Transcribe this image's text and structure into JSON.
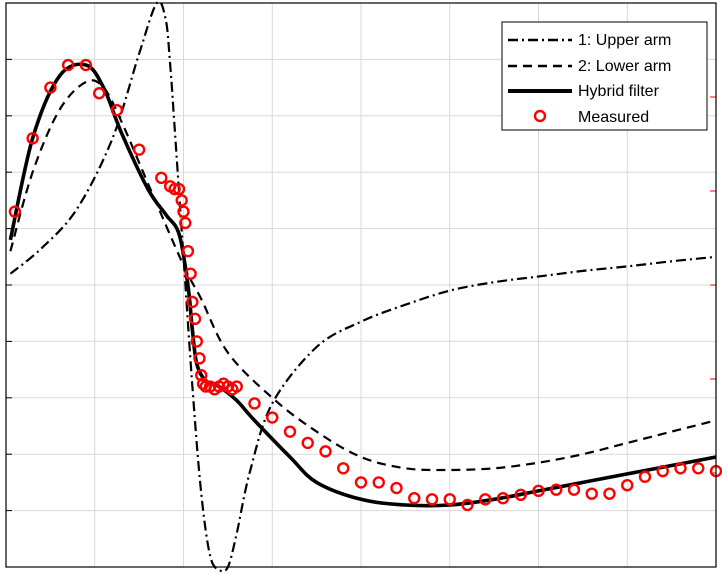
{
  "chart_data": {
    "type": "line",
    "xlim": [
      0,
      8
    ],
    "ylim": [
      0,
      10
    ],
    "grid": true,
    "legend_position": "top-right",
    "series": [
      {
        "name": "1: Upper arm",
        "style": "dashdot",
        "color": "#000000",
        "x": [
          0.05,
          0.4,
          0.8,
          1.2,
          1.5,
          1.7,
          1.8,
          1.85,
          1.9,
          2.0,
          2.1,
          2.2,
          2.3,
          2.4,
          2.5,
          2.6,
          2.75,
          3.0,
          3.5,
          4.0,
          4.5,
          5.0,
          5.5,
          6.0,
          6.5,
          7.0,
          7.5,
          8.0
        ],
        "y": [
          5.2,
          5.65,
          6.35,
          7.6,
          9.1,
          10.0,
          9.7,
          8.9,
          7.8,
          5.5,
          3.2,
          1.3,
          0.2,
          -0.05,
          0.0,
          0.6,
          1.7,
          2.9,
          3.9,
          4.35,
          4.65,
          4.9,
          5.05,
          5.15,
          5.25,
          5.33,
          5.42,
          5.5
        ]
      },
      {
        "name": "2: Lower arm",
        "style": "dashed",
        "color": "#000000",
        "x": [
          0.05,
          0.3,
          0.6,
          0.9,
          1.1,
          1.3,
          1.6,
          2.0,
          2.2,
          2.5,
          3.0,
          3.5,
          4.0,
          4.5,
          5.0,
          5.5,
          6.0,
          6.5,
          7.0,
          7.5,
          8.0
        ],
        "y": [
          5.6,
          7.0,
          8.1,
          8.6,
          8.5,
          7.9,
          6.8,
          5.35,
          4.75,
          3.8,
          3.0,
          2.4,
          1.95,
          1.75,
          1.72,
          1.75,
          1.85,
          2.0,
          2.2,
          2.4,
          2.6
        ]
      },
      {
        "name": "Hybrid filter",
        "style": "solid",
        "color": "#000000",
        "x": [
          0.05,
          0.3,
          0.6,
          0.9,
          1.1,
          1.3,
          1.6,
          1.8,
          1.95,
          2.05,
          2.1,
          2.15,
          2.25,
          2.4,
          2.6,
          2.8,
          3.2,
          3.5,
          4.0,
          4.5,
          5.0,
          5.5,
          6.0,
          6.5,
          7.0,
          7.5,
          8.0
        ],
        "y": [
          5.8,
          7.6,
          8.7,
          8.9,
          8.5,
          7.7,
          6.7,
          6.25,
          5.9,
          5.0,
          4.2,
          3.6,
          3.3,
          3.2,
          2.95,
          2.6,
          1.95,
          1.5,
          1.2,
          1.1,
          1.1,
          1.2,
          1.35,
          1.5,
          1.65,
          1.8,
          1.95
        ]
      }
    ],
    "measured": {
      "name": "Measured",
      "color": "#ff0000",
      "x": [
        0.1,
        0.3,
        0.5,
        0.7,
        0.9,
        1.05,
        1.25,
        1.5,
        1.75,
        1.85,
        1.9,
        1.95,
        1.98,
        2.0,
        2.02,
        2.05,
        2.08,
        2.1,
        2.13,
        2.15,
        2.18,
        2.2,
        2.22,
        2.25,
        2.3,
        2.35,
        2.4,
        2.45,
        2.5,
        2.55,
        2.6,
        2.8,
        3.0,
        3.2,
        3.4,
        3.6,
        3.8,
        4.0,
        4.2,
        4.4,
        4.6,
        4.8,
        5.0,
        5.2,
        5.4,
        5.6,
        5.8,
        6.0,
        6.2,
        6.4,
        6.6,
        6.8,
        7.0,
        7.2,
        7.4,
        7.6,
        7.8,
        8.0
      ],
      "y": [
        6.3,
        7.6,
        8.5,
        8.9,
        8.9,
        8.4,
        8.1,
        7.4,
        6.9,
        6.75,
        6.7,
        6.7,
        6.5,
        6.3,
        6.1,
        5.6,
        5.2,
        4.7,
        4.4,
        4.0,
        3.7,
        3.4,
        3.25,
        3.2,
        3.2,
        3.15,
        3.2,
        3.25,
        3.2,
        3.15,
        3.2,
        2.9,
        2.65,
        2.4,
        2.2,
        2.05,
        1.75,
        1.5,
        1.5,
        1.4,
        1.22,
        1.2,
        1.2,
        1.1,
        1.2,
        1.22,
        1.28,
        1.35,
        1.37,
        1.37,
        1.3,
        1.3,
        1.45,
        1.6,
        1.7,
        1.75,
        1.75,
        1.7
      ]
    },
    "legend": [
      "1: Upper arm",
      "2: Lower arm",
      "Hybrid filter",
      "Measured"
    ]
  }
}
